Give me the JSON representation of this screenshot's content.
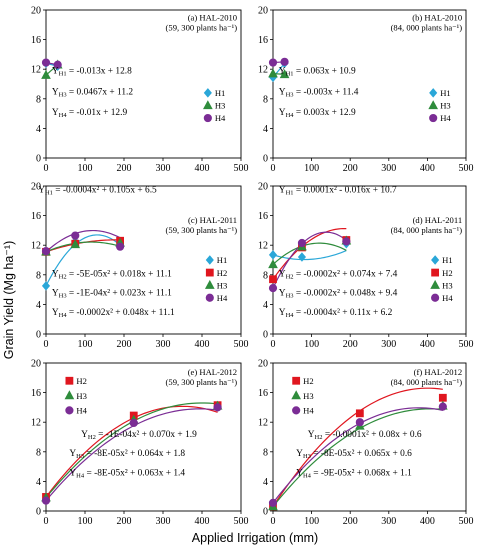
{
  "figure": {
    "ylabel": "Grain Yield (Mg ha⁻¹)",
    "xlabel": "Applied Irrigation (mm)"
  },
  "colors": {
    "H1": "#2aa7d8",
    "H2": "#e0161f",
    "H3": "#2f8c3c",
    "H4": "#7b2d95"
  },
  "markers": {
    "H1": "diamond-icon",
    "H2": "square-icon",
    "H3": "triangle-icon",
    "H4": "circle-icon"
  },
  "chart_data": [
    {
      "type": "scatter",
      "title": "(a) HAL-2010",
      "subtitle": "(59, 300 plants ha⁻¹)",
      "xlim": [
        0,
        500
      ],
      "ylim": [
        0,
        20
      ],
      "xticks": [
        "0",
        "100",
        "200",
        "300",
        "400",
        "500"
      ],
      "yticks": [
        "0",
        "4",
        "8",
        "12",
        "16",
        "20"
      ],
      "legend": [
        "H1",
        "H3",
        "H4"
      ],
      "series": [
        {
          "name": "H1",
          "x": [
            0,
            30
          ],
          "y": [
            12.8,
            12.4
          ],
          "fit": {
            "a": 0,
            "b": -0.013,
            "c": 12.8
          },
          "fit_range": [
            0,
            30
          ]
        },
        {
          "name": "H3",
          "x": [
            0,
            30
          ],
          "y": [
            11.2,
            12.6
          ],
          "fit": {
            "a": 0,
            "b": 0.0467,
            "c": 11.2
          },
          "fit_range": [
            0,
            30
          ]
        },
        {
          "name": "H4",
          "x": [
            0,
            30
          ],
          "y": [
            12.9,
            12.6
          ],
          "fit": {
            "a": 0,
            "b": -0.01,
            "c": 12.9
          },
          "fit_range": [
            0,
            30
          ]
        }
      ],
      "equations": [
        "Y_H1 = -0.013x + 12.8",
        "Y_H3 = 0.0467x + 11.2",
        "Y_H4 = -0.01x + 12.9"
      ]
    },
    {
      "type": "scatter",
      "title": "(b) HAL-2010",
      "subtitle": "(84, 000 plants ha⁻¹)",
      "xlim": [
        0,
        500
      ],
      "ylim": [
        0,
        20
      ],
      "xticks": [
        "0",
        "100",
        "200",
        "300",
        "400",
        "500"
      ],
      "yticks": [
        "0",
        "4",
        "8",
        "12",
        "16",
        "20"
      ],
      "legend": [
        "H1",
        "H3",
        "H4"
      ],
      "series": [
        {
          "name": "H1",
          "x": [
            0,
            30
          ],
          "y": [
            10.9,
            12.8
          ],
          "fit": {
            "a": 0,
            "b": 0.063,
            "c": 10.9
          },
          "fit_range": [
            0,
            30
          ]
        },
        {
          "name": "H3",
          "x": [
            0,
            30
          ],
          "y": [
            11.4,
            11.3
          ],
          "fit": {
            "a": 0,
            "b": -0.003,
            "c": 11.4
          },
          "fit_range": [
            0,
            30
          ]
        },
        {
          "name": "H4",
          "x": [
            0,
            30
          ],
          "y": [
            12.9,
            13.0
          ],
          "fit": {
            "a": 0,
            "b": 0.003,
            "c": 12.9
          },
          "fit_range": [
            0,
            30
          ]
        }
      ],
      "equations": [
        "Y_H1 = 0.063x + 10.9",
        "Y_H3 = -0.003x + 11.4",
        "Y_H4 = 0.003x + 12.9"
      ]
    },
    {
      "type": "scatter",
      "title": "(c) HAL-2011",
      "subtitle": "(59, 300 plants ha⁻¹)",
      "xlim": [
        0,
        500
      ],
      "ylim": [
        0,
        20
      ],
      "xticks": [
        "0",
        "100",
        "200",
        "300",
        "400",
        "500"
      ],
      "yticks": [
        "0",
        "4",
        "8",
        "12",
        "16",
        "20"
      ],
      "legend": [
        "H1",
        "H2",
        "H3",
        "H4"
      ],
      "series": [
        {
          "name": "H1",
          "x": [
            0,
            75,
            190
          ],
          "y": [
            6.5,
            12.5,
            12.0
          ],
          "fit": {
            "a": -0.0004,
            "b": 0.105,
            "c": 6.5
          },
          "fit_range": [
            0,
            190
          ]
        },
        {
          "name": "H2",
          "x": [
            0,
            75,
            190
          ],
          "y": [
            11.1,
            12.2,
            12.6
          ],
          "fit": {
            "a": -5e-05,
            "b": 0.018,
            "c": 11.1
          },
          "fit_range": [
            0,
            190
          ]
        },
        {
          "name": "H3",
          "x": [
            0,
            75,
            190
          ],
          "y": [
            11.1,
            12.1,
            12.3
          ],
          "fit": {
            "a": -0.0001,
            "b": 0.023,
            "c": 11.1
          },
          "fit_range": [
            0,
            190
          ]
        },
        {
          "name": "H4",
          "x": [
            0,
            75,
            190
          ],
          "y": [
            11.2,
            13.3,
            11.8
          ],
          "fit": {
            "a": -0.0002,
            "b": 0.048,
            "c": 11.1
          },
          "fit_range": [
            0,
            190
          ]
        }
      ],
      "equations": [
        "Y_H1 = -0.0004x² + 0.105x + 6.5",
        "Y_H2 = -5E-05x² + 0.018x + 11.1",
        "Y_H3 = -1E-04x² + 0.023x + 11.1",
        "Y_H4 = -0.0002x² + 0.048x + 11.1"
      ]
    },
    {
      "type": "scatter",
      "title": "(d) HAL-2011",
      "subtitle": "(84, 000 plants ha⁻¹)",
      "xlim": [
        0,
        500
      ],
      "ylim": [
        0,
        20
      ],
      "xticks": [
        "0",
        "100",
        "200",
        "300",
        "400",
        "500"
      ],
      "yticks": [
        "0",
        "4",
        "8",
        "12",
        "16",
        "20"
      ],
      "legend": [
        "H1",
        "H2",
        "H3",
        "H4"
      ],
      "series": [
        {
          "name": "H1",
          "x": [
            0,
            75,
            190
          ],
          "y": [
            10.7,
            10.4,
            12.2
          ],
          "fit": {
            "a": 0.0001,
            "b": -0.016,
            "c": 10.7
          },
          "fit_range": [
            0,
            190
          ]
        },
        {
          "name": "H2",
          "x": [
            0,
            75,
            190
          ],
          "y": [
            7.4,
            11.7,
            12.7
          ],
          "fit": {
            "a": -0.0002,
            "b": 0.074,
            "c": 7.4
          },
          "fit_range": [
            0,
            190
          ]
        },
        {
          "name": "H3",
          "x": [
            0,
            75,
            190
          ],
          "y": [
            9.4,
            11.8,
            12.6
          ],
          "fit": {
            "a": -0.0002,
            "b": 0.048,
            "c": 9.4
          },
          "fit_range": [
            0,
            190
          ]
        },
        {
          "name": "H4",
          "x": [
            0,
            75,
            190
          ],
          "y": [
            6.2,
            12.3,
            12.5
          ],
          "fit": {
            "a": -0.0004,
            "b": 0.11,
            "c": 6.2
          },
          "fit_range": [
            0,
            190
          ]
        }
      ],
      "equations": [
        "Y_H1 = 0.0001x² - 0.016x + 10.7",
        "Y_H2 = -0.0002x² + 0.074x + 7.4",
        "Y_H3 = -0.0002x² + 0.048x + 9.4",
        "Y_H4 = -0.0004x² + 0.11x + 6.2"
      ]
    },
    {
      "type": "scatter",
      "title": "(e) HAL-2012",
      "subtitle": "(59, 300 plants ha⁻¹)",
      "xlim": [
        0,
        500
      ],
      "ylim": [
        0,
        20
      ],
      "xticks": [
        "0",
        "100",
        "200",
        "300",
        "400",
        "500"
      ],
      "yticks": [
        "0",
        "4",
        "8",
        "12",
        "16",
        "20"
      ],
      "legend": [
        "H2",
        "H3",
        "H4"
      ],
      "series": [
        {
          "name": "H2",
          "x": [
            0,
            225,
            440
          ],
          "y": [
            1.9,
            12.9,
            14.3
          ],
          "fit": {
            "a": -0.0001,
            "b": 0.07,
            "c": 1.9
          },
          "fit_range": [
            0,
            440
          ]
        },
        {
          "name": "H3",
          "x": [
            0,
            225,
            440
          ],
          "y": [
            1.8,
            12.3,
            14.2
          ],
          "fit": {
            "a": -8e-05,
            "b": 0.064,
            "c": 1.8
          },
          "fit_range": [
            0,
            440
          ]
        },
        {
          "name": "H4",
          "x": [
            0,
            225,
            440
          ],
          "y": [
            1.4,
            11.9,
            14.0
          ],
          "fit": {
            "a": -8e-05,
            "b": 0.063,
            "c": 1.4
          },
          "fit_range": [
            0,
            440
          ]
        }
      ],
      "equations": [
        "Y_H2 = -1E-04x² + 0.070x + 1.9",
        "Y_H3 = -8E-05x² + 0.064x + 1.8",
        "Y_H4 = -8E-05x² + 0.063x + 1.4"
      ]
    },
    {
      "type": "scatter",
      "title": "(f) HAL-2012",
      "subtitle": "(84, 000 plants ha⁻¹)",
      "xlim": [
        0,
        500
      ],
      "ylim": [
        0,
        20
      ],
      "xticks": [
        "0",
        "100",
        "200",
        "300",
        "400",
        "500"
      ],
      "yticks": [
        "0",
        "4",
        "8",
        "12",
        "16",
        "20"
      ],
      "legend": [
        "H2",
        "H3",
        "H4"
      ],
      "series": [
        {
          "name": "H2",
          "x": [
            0,
            225,
            440
          ],
          "y": [
            0.6,
            13.2,
            15.3
          ],
          "fit": {
            "a": -0.0001,
            "b": 0.08,
            "c": 0.6
          },
          "fit_range": [
            0,
            440
          ]
        },
        {
          "name": "H3",
          "x": [
            0,
            225,
            440
          ],
          "y": [
            0.6,
            11.5,
            14.2
          ],
          "fit": {
            "a": -8e-05,
            "b": 0.065,
            "c": 0.6
          },
          "fit_range": [
            0,
            440
          ]
        },
        {
          "name": "H4",
          "x": [
            0,
            225,
            440
          ],
          "y": [
            1.1,
            12.0,
            14.1
          ],
          "fit": {
            "a": -9e-05,
            "b": 0.068,
            "c": 1.1
          },
          "fit_range": [
            0,
            440
          ]
        }
      ],
      "equations": [
        "Y_H2 = -0.0001x² + 0.08x + 0.6",
        "Y_H3 = -8E-05x² + 0.065x + 0.6",
        "Y_H4 = -9E-05x² + 0.068x + 1.1"
      ]
    }
  ]
}
